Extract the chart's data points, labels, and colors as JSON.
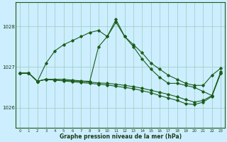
{
  "background_color": "#cceeff",
  "plot_bg_color": "#cceeff",
  "line_color": "#1a5c1a",
  "grid_color": "#99ccbb",
  "title": "Graphe pression niveau de la mer (hPa)",
  "xlabel_ticks": [
    0,
    1,
    2,
    3,
    4,
    5,
    6,
    7,
    8,
    9,
    10,
    11,
    12,
    13,
    14,
    15,
    16,
    17,
    18,
    19,
    20,
    21,
    22,
    23
  ],
  "ylim": [
    1025.5,
    1028.6
  ],
  "yticks": [
    1026,
    1027,
    1028
  ],
  "series1": [
    1026.85,
    1026.85,
    1026.65,
    1027.1,
    1027.4,
    1027.55,
    1027.65,
    1027.75,
    1027.85,
    1027.9,
    1027.75,
    1028.1,
    1027.75,
    1027.5,
    1027.2,
    1026.95,
    1026.75,
    1026.6,
    1026.6,
    1026.55,
    1026.5,
    1026.4,
    1026.3,
    1026.85
  ],
  "series2": [
    1026.85,
    1026.85,
    1026.65,
    1026.7,
    1026.7,
    1026.7,
    1026.68,
    1026.66,
    1026.65,
    1027.5,
    1027.75,
    1028.17,
    1027.75,
    1027.55,
    1027.35,
    1027.1,
    1026.95,
    1026.8,
    1026.7,
    1026.6,
    1026.55,
    1026.55,
    1026.8,
    1026.97
  ],
  "series3": [
    1026.85,
    1026.85,
    1026.65,
    1026.7,
    1026.68,
    1026.67,
    1026.66,
    1026.65,
    1026.63,
    1026.61,
    1026.6,
    1026.58,
    1026.55,
    1026.52,
    1026.48,
    1026.43,
    1026.38,
    1026.33,
    1026.27,
    1026.2,
    1026.14,
    1026.18,
    1026.3,
    1026.88
  ],
  "series4": [
    1026.85,
    1026.85,
    1026.65,
    1026.7,
    1026.68,
    1026.66,
    1026.64,
    1026.62,
    1026.6,
    1026.58,
    1026.56,
    1026.53,
    1026.5,
    1026.47,
    1026.42,
    1026.37,
    1026.3,
    1026.24,
    1026.18,
    1026.1,
    1026.08,
    1026.14,
    1026.28,
    1026.85
  ]
}
